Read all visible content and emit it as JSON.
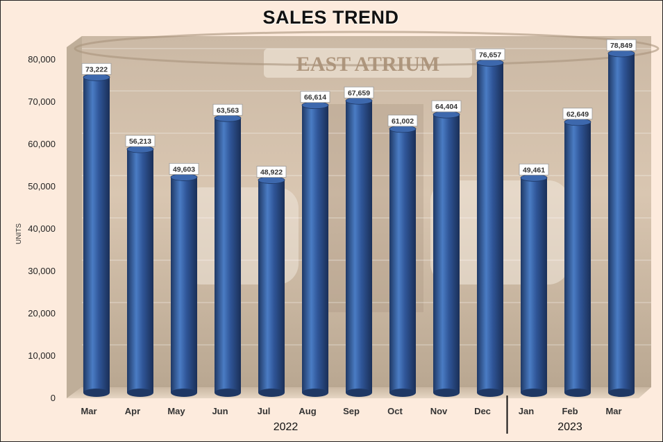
{
  "chart_data": {
    "type": "bar",
    "title": "SALES TREND",
    "ylabel": "UNITS",
    "xlabel": "",
    "ylim": [
      0,
      80000
    ],
    "yticks": [
      "0",
      "10,000",
      "20,000",
      "30,000",
      "40,000",
      "50,000",
      "60,000",
      "70,000",
      "80,000"
    ],
    "categories": [
      "Mar",
      "Apr",
      "May",
      "Jun",
      "Jul",
      "Aug",
      "Sep",
      "Oct",
      "Nov",
      "Dec",
      "Jan",
      "Feb",
      "Mar"
    ],
    "values": [
      73222,
      56213,
      49603,
      63563,
      48922,
      66614,
      67659,
      61002,
      64404,
      76657,
      49461,
      62649,
      78849
    ],
    "value_labels": [
      "73,222",
      "56,213",
      "49,603",
      "63,563",
      "48,922",
      "66,614",
      "67,659",
      "61,002",
      "64,404",
      "76,657",
      "49,461",
      "62,649",
      "78,849"
    ],
    "groups": [
      {
        "label": "2022",
        "count": 10
      },
      {
        "label": "2023",
        "count": 3
      }
    ],
    "grid": true,
    "legend": "none",
    "colors": {
      "bar": "#2f5597",
      "bar_light": "#4f7fc4",
      "bar_dark": "#1f3864",
      "background": "#fdebdd",
      "wall": "#e4d2bf"
    },
    "background_image": "mall atrium photo (East Atrium) behind plot area"
  }
}
